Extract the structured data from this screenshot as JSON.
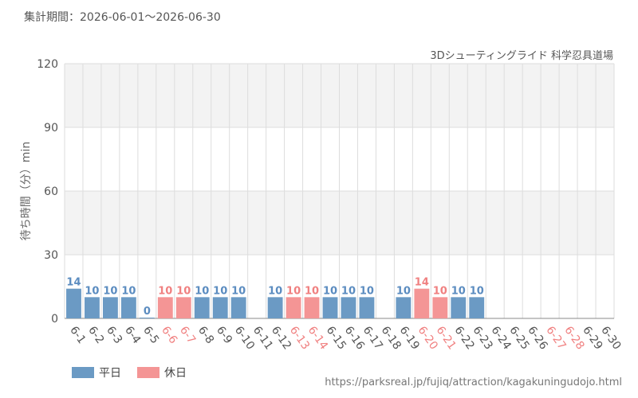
{
  "header": {
    "period": "集計期間：2026-06-01～2026-06-30",
    "subtitle": "3Dシューティングライド 科学忍具道場"
  },
  "source_url": "https://parksreal.jp/fujiq/attraction/kagakuningudojo.html",
  "colors": {
    "weekday": "#6b9ac4",
    "holiday": "#f49595",
    "weekday_label": "#5b8cc0",
    "holiday_label": "#f08080",
    "axis_text": "#555555",
    "band": "#f3f3f3",
    "grid": "#dddddd"
  },
  "chart_data": {
    "type": "bar",
    "ylabel": "待ち時間（分）min",
    "ylim": [
      0,
      120
    ],
    "yticks": [
      0,
      30,
      60,
      90,
      120
    ],
    "legend": [
      {
        "key": "weekday",
        "label": "平日"
      },
      {
        "key": "holiday",
        "label": "休日"
      }
    ],
    "legend_position": "bottom-left",
    "categories": [
      "6-1",
      "6-2",
      "6-3",
      "6-4",
      "6-5",
      "6-6",
      "6-7",
      "6-8",
      "6-9",
      "6-10",
      "6-11",
      "6-12",
      "6-13",
      "6-14",
      "6-15",
      "6-16",
      "6-17",
      "6-18",
      "6-19",
      "6-20",
      "6-21",
      "6-22",
      "6-23",
      "6-24",
      "6-25",
      "6-26",
      "6-27",
      "6-28",
      "6-29",
      "6-30"
    ],
    "values": [
      14,
      10,
      10,
      10,
      0,
      10,
      10,
      10,
      10,
      10,
      null,
      10,
      10,
      10,
      10,
      10,
      10,
      null,
      10,
      14,
      10,
      10,
      10,
      null,
      null,
      null,
      null,
      null,
      null,
      null
    ],
    "day_type": [
      "weekday",
      "weekday",
      "weekday",
      "weekday",
      "weekday",
      "holiday",
      "holiday",
      "weekday",
      "weekday",
      "weekday",
      "weekday",
      "weekday",
      "holiday",
      "holiday",
      "weekday",
      "weekday",
      "weekday",
      "weekday",
      "weekday",
      "holiday",
      "holiday",
      "weekday",
      "weekday",
      "weekday",
      "weekday",
      "weekday",
      "holiday",
      "holiday",
      "weekday",
      "weekday"
    ]
  }
}
